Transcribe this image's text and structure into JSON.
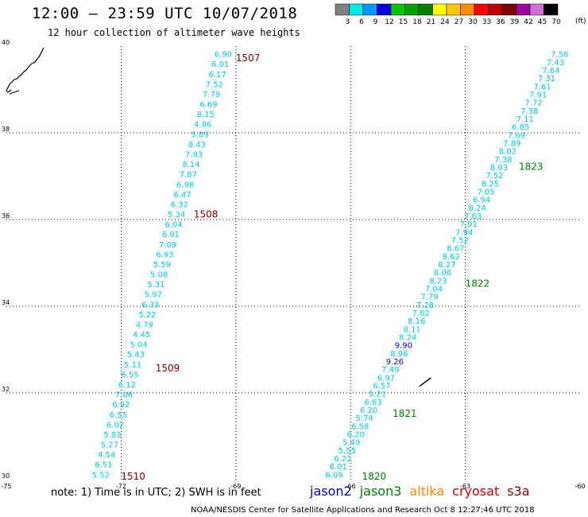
{
  "header": {
    "title": "12:00 – 23:59 UTC 10/07/2018",
    "subtitle": "12 hour collection of altimeter wave heights"
  },
  "color_scale": {
    "bins": [
      {
        "label": "3",
        "color": "#808080"
      },
      {
        "label": "6",
        "color": "#00e8e8"
      },
      {
        "label": "9",
        "color": "#0098ff"
      },
      {
        "label": "12",
        "color": "#0000e0"
      },
      {
        "label": "15",
        "color": "#00c800"
      },
      {
        "label": "18",
        "color": "#00a000"
      },
      {
        "label": "21",
        "color": "#008000"
      },
      {
        "label": "24",
        "color": "#ffff00"
      },
      {
        "label": "27",
        "color": "#ffc800"
      },
      {
        "label": "30",
        "color": "#ff8c00"
      },
      {
        "label": "33",
        "color": "#ff0000"
      },
      {
        "label": "36",
        "color": "#c00000"
      },
      {
        "label": "39",
        "color": "#800000"
      },
      {
        "label": "42",
        "color": "#a000a0"
      },
      {
        "label": "45",
        "color": "#d070d0"
      },
      {
        "label": "70",
        "color": "#000000"
      }
    ],
    "unit": "(ft)"
  },
  "map": {
    "lon_range": [
      -75,
      -60
    ],
    "lat_range": [
      30,
      40
    ],
    "lon_ticks": [
      "-75",
      "-72",
      "-69",
      "-66",
      "-63",
      "-60"
    ],
    "lat_ticks": [
      "30",
      "32",
      "34",
      "36",
      "38",
      "40"
    ],
    "grid": "dotted"
  },
  "tracks": [
    {
      "name": "west-track",
      "color": "#00c8e8",
      "start": [
        -69.1,
        39.75
      ],
      "end": [
        -72.3,
        30.05
      ],
      "values": [
        "6.90",
        "6.01",
        "6.17",
        "7.52",
        "7.79",
        "6.69",
        "8.15",
        "4.86",
        "5.89",
        "8.43",
        "7.93",
        "8.14",
        "7.87",
        "6.98",
        "6.47",
        "6.32",
        "5.34",
        "6.04",
        "6.91",
        "7.09",
        "6.93",
        "5.59",
        "5.08",
        "5.31",
        "5.97",
        "6.33",
        "5.22",
        "4.79",
        "4.45",
        "5.04",
        "5.43",
        "5.11",
        "6.55",
        "6.12",
        "7.06",
        "6.92",
        "6.55",
        "6.02",
        "5.83",
        "5.27",
        "4.54",
        "6.51",
        "5.52"
      ],
      "times": [
        {
          "label": "1507",
          "lon": -69.0,
          "lat": 39.65
        },
        {
          "label": "1508",
          "lon": -70.1,
          "lat": 36.05
        },
        {
          "label": "1509",
          "lon": -71.1,
          "lat": 32.5
        },
        {
          "label": "1510",
          "lon": -72.0,
          "lat": 30.0
        }
      ],
      "time_color": "#800000"
    },
    {
      "name": "east-track",
      "color": "#00c8e8",
      "start": [
        -60.3,
        39.75
      ],
      "end": [
        -66.2,
        30.05
      ],
      "values": [
        "7.56",
        "7.43",
        "7.64",
        "7.31",
        "7.61",
        "7.91",
        "7.72",
        "7.38",
        "7.11",
        "6.85",
        "7.69",
        "7.89",
        "8.02",
        "7.38",
        "8.03",
        "7.52",
        "8.25",
        "7.05",
        "6.94",
        "8.24",
        "7.63",
        "7.91",
        "7.94",
        "7.52",
        "8.67",
        "8.62",
        "8.27",
        "8.06",
        "8.23",
        "7.04",
        "7.79",
        "7.28",
        "7.62",
        "8.16",
        "8.11",
        "8.24",
        "9.90",
        "8.96",
        "9.26",
        "7.49",
        "6.97",
        "6.57",
        "5.21",
        "6.63",
        "6.20",
        "5.74",
        "6.58",
        "6.20",
        "5.49",
        "5.55",
        "6.22",
        "6.01",
        "6.09"
      ],
      "value_colors": {
        "36": "#0000e0",
        "38": "#0000e0"
      },
      "times": [
        {
          "label": "1823",
          "lon": -61.6,
          "lat": 37.15
        },
        {
          "label": "1822",
          "lon": -63.0,
          "lat": 34.45
        },
        {
          "label": "1821",
          "lon": -64.9,
          "lat": 31.45
        },
        {
          "label": "1820",
          "lon": -65.7,
          "lat": 30.0
        }
      ],
      "time_color": "#008000"
    }
  ],
  "footer": {
    "note": "note:  1) Time is in UTC;  2) SWH is in feet",
    "satellites": [
      {
        "name": "jason2",
        "color": "#0000c8"
      },
      {
        "name": "jason3",
        "color": "#008000"
      },
      {
        "name": "altika",
        "color": "#ff8c00"
      },
      {
        "name": "cryosat",
        "color": "#d00000"
      },
      {
        "name": "s3a",
        "color": "#800000"
      }
    ],
    "credit": "NOAA/NESDIS Center for Satellite Applications and Research    Oct  8 12:27:46 UTC 2018"
  }
}
